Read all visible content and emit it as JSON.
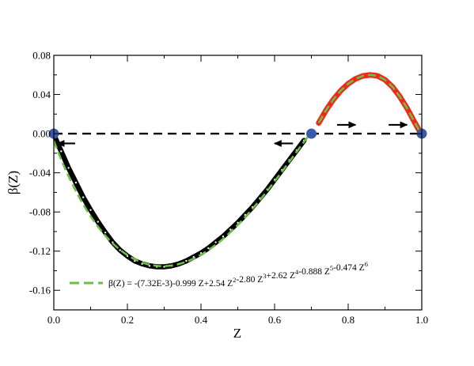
{
  "chart_data": {
    "type": "line",
    "title": "",
    "xlabel": "Z",
    "ylabel": "β(Z)",
    "xlim": [
      0.0,
      1.0
    ],
    "ylim": [
      -0.18,
      0.08
    ],
    "x_ticks": [
      0.0,
      0.2,
      0.4,
      0.6,
      0.8,
      1.0
    ],
    "x_tick_labels": [
      "0.0",
      "0.2",
      "0.4",
      "0.6",
      "0.8",
      "1.0"
    ],
    "y_ticks": [
      -0.16,
      -0.12,
      -0.08,
      -0.04,
      0.0,
      0.04,
      0.08
    ],
    "y_tick_labels": [
      "-0.16",
      "-0.12",
      "-0.08",
      "-0.04",
      "0.00",
      "0.04",
      "0.08"
    ],
    "grid": false,
    "fit": {
      "legend_label": "β(Z) = -(7.32E-3)-0.999 Z+2.54 Z2-2.80 Z3+2.62 Z4-0.888 Z5-0.474 Z6",
      "legend_parts": [
        {
          "text": "β(Z) = -(7.32E-3)-0.999 Z+2.54 Z",
          "sup": "2"
        },
        {
          "text": "-2.80 Z",
          "sup": "3"
        },
        {
          "text": "+2.62 Z",
          "sup": "4"
        },
        {
          "text": "-0.888 Z",
          "sup": "5"
        },
        {
          "text": "-0.474 Z",
          "sup": "6"
        }
      ],
      "coefficients": [
        -0.00732,
        -0.999,
        2.54,
        -2.8,
        2.62,
        -0.888,
        -0.474
      ],
      "x_range": [
        0.0,
        0.69
      ],
      "color": "#6abf45",
      "style": "dashed"
    },
    "series": [
      {
        "kind": "data-points-negative",
        "color": "#000000",
        "marker": "open-circle",
        "x": [
          0.0,
          0.02,
          0.04,
          0.06,
          0.08,
          0.1,
          0.12,
          0.14,
          0.16,
          0.18,
          0.2,
          0.22,
          0.24,
          0.26,
          0.28,
          0.3,
          0.32,
          0.34,
          0.36,
          0.38,
          0.4,
          0.42,
          0.44,
          0.46,
          0.48,
          0.5,
          0.52,
          0.54,
          0.56,
          0.58,
          0.6,
          0.62,
          0.64,
          0.66,
          0.68
        ],
        "y": [
          -0.001,
          -0.018,
          -0.035,
          -0.05,
          -0.065,
          -0.078,
          -0.09,
          -0.101,
          -0.111,
          -0.119,
          -0.125,
          -0.13,
          -0.133,
          -0.135,
          -0.136,
          -0.136,
          -0.135,
          -0.133,
          -0.13,
          -0.126,
          -0.122,
          -0.117,
          -0.111,
          -0.105,
          -0.098,
          -0.091,
          -0.083,
          -0.075,
          -0.066,
          -0.057,
          -0.047,
          -0.037,
          -0.027,
          -0.017,
          -0.007
        ]
      },
      {
        "kind": "data-points-positive",
        "color": "#ee2a1b",
        "marker": "filled",
        "x": [
          0.72,
          0.74,
          0.76,
          0.78,
          0.8,
          0.82,
          0.84,
          0.86,
          0.88,
          0.9,
          0.92,
          0.94,
          0.96,
          0.98,
          0.995
        ],
        "y": [
          0.011,
          0.024,
          0.035,
          0.044,
          0.051,
          0.056,
          0.059,
          0.06,
          0.059,
          0.055,
          0.048,
          0.038,
          0.026,
          0.012,
          0.002
        ]
      }
    ],
    "zero_line": {
      "y": 0.0,
      "style": "dashed",
      "color": "#000000"
    },
    "fixed_points": {
      "x": [
        0.0,
        0.7,
        1.0
      ],
      "y": [
        0.0,
        0.0,
        0.0
      ],
      "color": "#3a5aa8"
    },
    "arrows": [
      {
        "x_from": 0.058,
        "x_to": 0.01,
        "y": -0.01,
        "direction": "left"
      },
      {
        "x_from": 0.65,
        "x_to": 0.6,
        "y": -0.01,
        "direction": "left"
      },
      {
        "x_from": 0.77,
        "x_to": 0.82,
        "y": 0.009,
        "direction": "right"
      },
      {
        "x_from": 0.91,
        "x_to": 0.96,
        "y": 0.009,
        "direction": "right"
      }
    ]
  }
}
